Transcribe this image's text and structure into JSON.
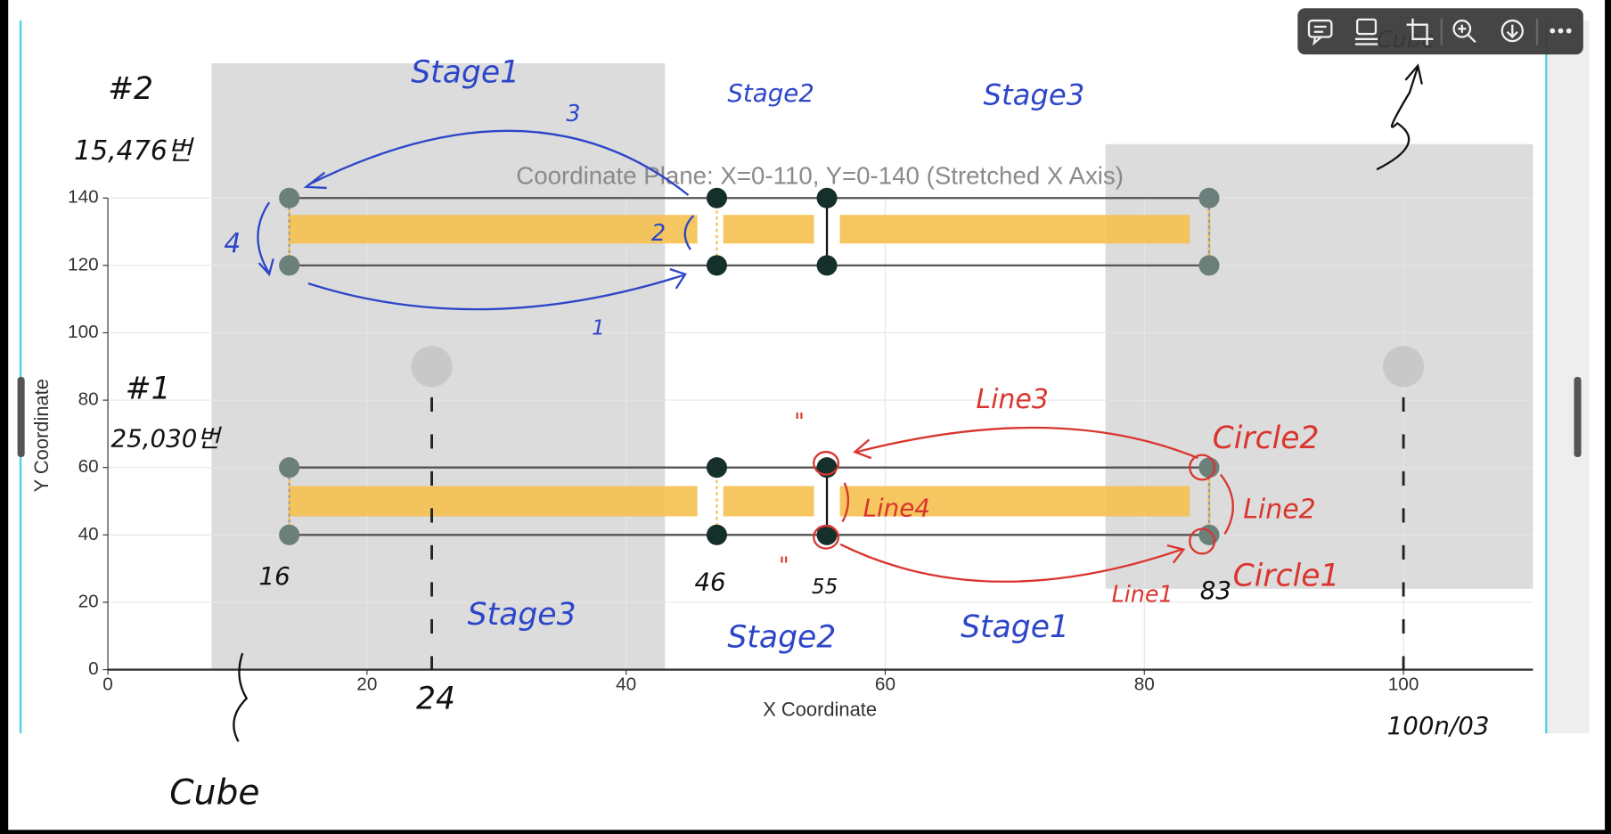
{
  "chart_data": {
    "type": "scatter",
    "title": "Coordinate Plane: X=0-110, Y=0-140 (Stretched X Axis)",
    "xlabel": "X Coordinate",
    "ylabel": "Y Coordinate",
    "xlim": [
      0,
      110
    ],
    "ylim": [
      0,
      140
    ],
    "xticks": [
      0,
      20,
      40,
      60,
      80,
      100
    ],
    "yticks": [
      0,
      20,
      40,
      60,
      80,
      100,
      120,
      140
    ],
    "grid": true,
    "series": [
      {
        "color": "#6b7f7b",
        "x": [
          14,
          14,
          85,
          85,
          14,
          14,
          85,
          85
        ],
        "values": [
          140,
          120,
          140,
          120,
          60,
          40,
          60,
          40
        ]
      },
      {
        "color": "#15302b",
        "x": [
          47,
          47,
          55.5,
          55.5,
          47,
          47,
          55.5,
          55.5
        ],
        "values": [
          140,
          120,
          140,
          120,
          60,
          40,
          60,
          40
        ]
      },
      {
        "color": "#c8c8c8",
        "x": [
          25,
          100
        ],
        "values": [
          90,
          90
        ]
      }
    ],
    "shaded_regions": [
      {
        "x": [
          8,
          43
        ],
        "y": [
          0,
          180
        ],
        "color": "#dcdcdc"
      },
      {
        "x": [
          77,
          110
        ],
        "y": [
          24,
          156
        ],
        "color": "#dcdcdc"
      }
    ],
    "frames": [
      {
        "x": [
          14,
          85
        ],
        "y": [
          120,
          140
        ]
      },
      {
        "x": [
          14,
          85
        ],
        "y": [
          40,
          60
        ]
      }
    ],
    "highlights": [
      {
        "x": [
          14,
          45.5
        ],
        "y": [
          126.5,
          135
        ],
        "color": "#f5c04f"
      },
      {
        "x": [
          47.5,
          54.5
        ],
        "y": [
          126.5,
          135
        ],
        "color": "#f5c04f"
      },
      {
        "x": [
          56.5,
          83.5
        ],
        "y": [
          126.5,
          135
        ],
        "color": "#f5c04f"
      },
      {
        "x": [
          14,
          45.5
        ],
        "y": [
          45.5,
          54.5
        ],
        "color": "#f5c04f"
      },
      {
        "x": [
          47.5,
          54.5
        ],
        "y": [
          45.5,
          54.5
        ],
        "color": "#f5c04f"
      },
      {
        "x": [
          56.5,
          83.5
        ],
        "y": [
          45.5,
          54.5
        ],
        "color": "#f5c04f"
      }
    ]
  },
  "annotations": [
    {
      "text": "#2",
      "color": "#111111"
    },
    {
      "text": "15,476번",
      "color": "#111111"
    },
    {
      "text": "Stage1",
      "color": "#2d46c8"
    },
    {
      "text": "Stage2",
      "color": "#2d46c8"
    },
    {
      "text": "Stage3",
      "color": "#2d46c8"
    },
    {
      "text": "3",
      "color": "#2d46c8"
    },
    {
      "text": "1",
      "color": "#2d46c8"
    },
    {
      "text": "2",
      "color": "#2d46c8"
    },
    {
      "text": "4",
      "color": "#2d46c8"
    },
    {
      "text": "#1",
      "color": "#111111"
    },
    {
      "text": "25,030번",
      "color": "#111111"
    },
    {
      "text": "Line3",
      "color": "#d9352e"
    },
    {
      "text": "Circle2",
      "color": "#d9352e"
    },
    {
      "text": "Line4",
      "color": "#d9352e"
    },
    {
      "text": "Line2",
      "color": "#d9352e"
    },
    {
      "text": "Circle1",
      "color": "#d9352e"
    },
    {
      "text": "Line1",
      "color": "#d9352e"
    },
    {
      "text": "16",
      "color": "#111111"
    },
    {
      "text": "46",
      "color": "#111111"
    },
    {
      "text": "55",
      "color": "#111111"
    },
    {
      "text": "83",
      "color": "#111111"
    },
    {
      "text": "Stage3",
      "color": "#2d46c8"
    },
    {
      "text": "Stage2",
      "color": "#2d46c8"
    },
    {
      "text": "Stage1",
      "color": "#2d46c8"
    },
    {
      "text": "24",
      "color": "#111111"
    },
    {
      "text": "Cube",
      "color": "#111111"
    },
    {
      "text": "100n/03",
      "color": "#111111"
    },
    {
      "text": "Cube",
      "color": "#111111"
    },
    {
      "text": "\"",
      "color": "#d9352e"
    },
    {
      "text": "\"",
      "color": "#d9352e"
    }
  ]
}
